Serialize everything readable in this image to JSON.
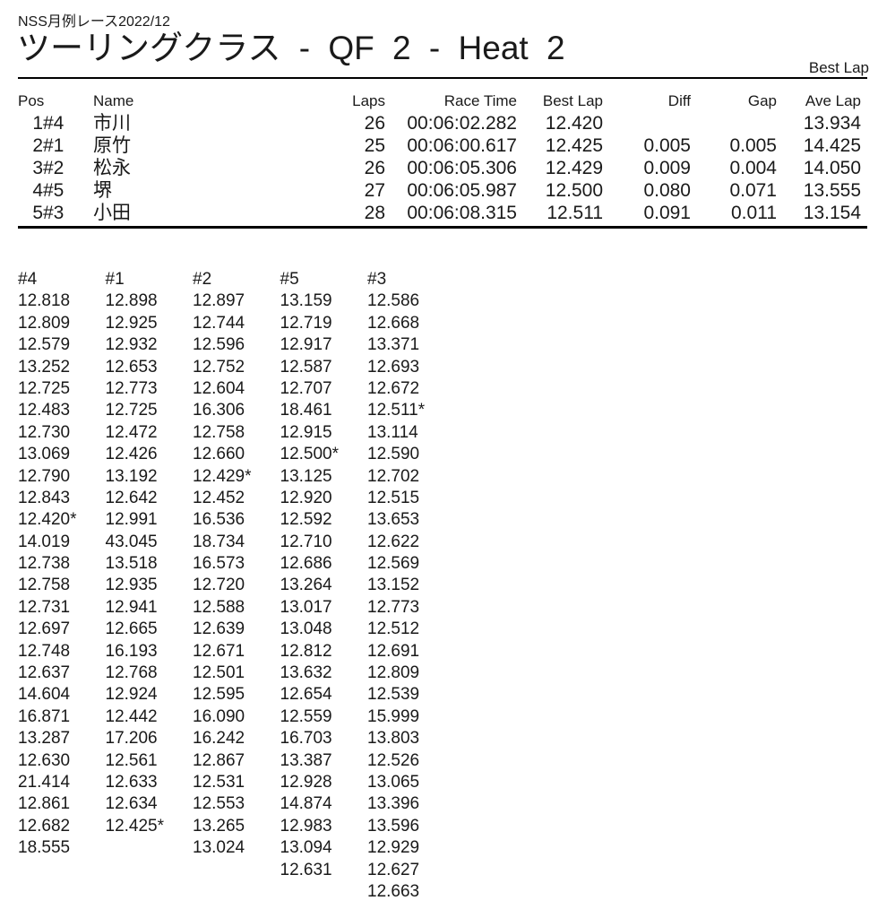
{
  "page": {
    "event_title": "NSS月例レース2022/12",
    "heat_title": "ツーリングクラス - QF 2 - Heat 2",
    "best_lap_note": "Best Lap"
  },
  "results": {
    "headers": [
      "Pos",
      "",
      "Name",
      "Laps",
      "Race Time",
      "Best Lap",
      "Diff",
      "Gap",
      "Ave Lap"
    ],
    "rows": [
      [
        "1",
        "#4",
        "市川",
        "26",
        "00:06:02.282",
        "12.420",
        "",
        "",
        "13.934"
      ],
      [
        "2",
        "#1",
        "原竹",
        "25",
        "00:06:00.617",
        "12.425",
        "0.005",
        "0.005",
        "14.425"
      ],
      [
        "3",
        "#2",
        "松永",
        "26",
        "00:06:05.306",
        "12.429",
        "0.009",
        "0.004",
        "14.050"
      ],
      [
        "4",
        "#5",
        "堺",
        "27",
        "00:06:05.987",
        "12.500",
        "0.080",
        "0.071",
        "13.555"
      ],
      [
        "5",
        "#3",
        "小田",
        "28",
        "00:06:08.315",
        "12.511",
        "0.091",
        "0.011",
        "13.154"
      ]
    ]
  },
  "lap_chart": {
    "columns": [
      {
        "car": "#4",
        "laps": [
          "12.818",
          "12.809",
          "12.579",
          "13.252",
          "12.725",
          "12.483",
          "12.730",
          "13.069",
          "12.790",
          "12.843",
          "12.420*",
          "14.019",
          "12.738",
          "12.758",
          "12.731",
          "12.697",
          "12.748",
          "12.637",
          "14.604",
          "16.871",
          "13.287",
          "12.630",
          "21.414",
          "12.861",
          "12.682",
          "18.555"
        ]
      },
      {
        "car": "#1",
        "laps": [
          "12.898",
          "12.925",
          "12.932",
          "12.653",
          "12.773",
          "12.725",
          "12.472",
          "12.426",
          "13.192",
          "12.642",
          "12.991",
          "43.045",
          "13.518",
          "12.935",
          "12.941",
          "12.665",
          "16.193",
          "12.768",
          "12.924",
          "12.442",
          "17.206",
          "12.561",
          "12.633",
          "12.634",
          "12.425*"
        ]
      },
      {
        "car": "#2",
        "laps": [
          "12.897",
          "12.744",
          "12.596",
          "12.752",
          "12.604",
          "16.306",
          "12.758",
          "12.660",
          "12.429*",
          "12.452",
          "16.536",
          "18.734",
          "16.573",
          "12.720",
          "12.588",
          "12.639",
          "12.671",
          "12.501",
          "12.595",
          "16.090",
          "16.242",
          "12.867",
          "12.531",
          "12.553",
          "13.265",
          "13.024"
        ]
      },
      {
        "car": "#5",
        "laps": [
          "13.159",
          "12.719",
          "12.917",
          "12.587",
          "12.707",
          "18.461",
          "12.915",
          "12.500*",
          "13.125",
          "12.920",
          "12.592",
          "12.710",
          "12.686",
          "13.264",
          "13.017",
          "13.048",
          "12.812",
          "13.632",
          "12.654",
          "12.559",
          "16.703",
          "13.387",
          "12.928",
          "14.874",
          "12.983",
          "13.094",
          "12.631"
        ]
      },
      {
        "car": "#3",
        "laps": [
          "12.586",
          "12.668",
          "13.371",
          "12.693",
          "12.672",
          "12.511*",
          "13.114",
          "12.590",
          "12.702",
          "12.515",
          "13.653",
          "12.622",
          "12.569",
          "13.152",
          "12.773",
          "12.512",
          "12.691",
          "12.809",
          "12.539",
          "15.999",
          "13.803",
          "12.526",
          "13.065",
          "13.396",
          "13.596",
          "12.929",
          "12.627",
          "12.663"
        ]
      }
    ]
  }
}
